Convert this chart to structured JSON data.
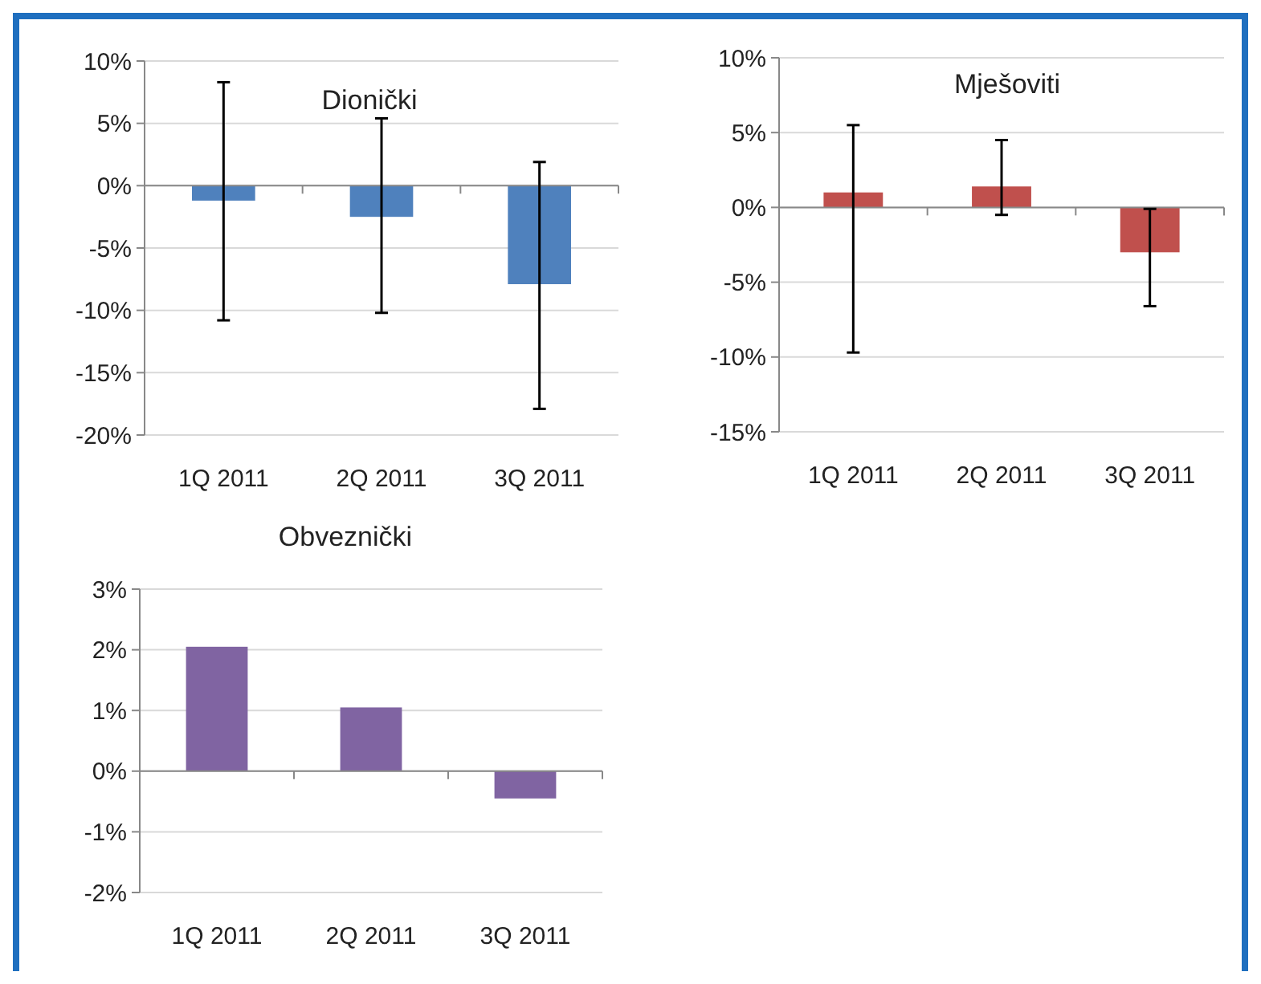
{
  "chart_data": [
    {
      "type": "bar",
      "title": "Dionički",
      "categories": [
        "1Q 2011",
        "2Q 2011",
        "3Q 2011"
      ],
      "values": [
        -1.2,
        -2.5,
        -7.9
      ],
      "color": "#4f81bd",
      "errors": [
        [
          -10.8,
          8.3
        ],
        [
          -10.2,
          5.4
        ],
        [
          -17.9,
          1.9
        ]
      ],
      "ylim": [
        -20,
        10
      ],
      "yticks": [
        {
          "value": -20,
          "label": "-20%"
        },
        {
          "value": -15,
          "label": "-15%"
        },
        {
          "value": -10,
          "label": "-10%"
        },
        {
          "value": -5,
          "label": "-5%"
        },
        {
          "value": 0,
          "label": "0%"
        },
        {
          "value": 5,
          "label": "5%"
        },
        {
          "value": 10,
          "label": "10%"
        }
      ],
      "grid": "y"
    },
    {
      "type": "bar",
      "title": "Mješoviti",
      "categories": [
        "1Q 2011",
        "2Q 2011",
        "3Q 2011"
      ],
      "values": [
        1.0,
        1.4,
        -3.0
      ],
      "color": "#c0504d",
      "errors": [
        [
          -9.7,
          5.5
        ],
        [
          -0.5,
          4.5
        ],
        [
          -6.6,
          -0.1
        ]
      ],
      "ylim": [
        -15,
        10
      ],
      "yticks": [
        {
          "value": -15,
          "label": "-15%"
        },
        {
          "value": -10,
          "label": "-10%"
        },
        {
          "value": -5,
          "label": "-5%"
        },
        {
          "value": 0,
          "label": "0%"
        },
        {
          "value": 5,
          "label": "5%"
        },
        {
          "value": 10,
          "label": "10%"
        }
      ],
      "grid": "y"
    },
    {
      "type": "bar",
      "title": "Obveznički",
      "categories": [
        "1Q 2011",
        "2Q 2011",
        "3Q 2011"
      ],
      "values": [
        2.05,
        1.05,
        -0.45
      ],
      "color": "#8064a2",
      "ylim": [
        -2,
        3
      ],
      "yticks": [
        {
          "value": -2,
          "label": "-2%"
        },
        {
          "value": -1,
          "label": "-1%"
        },
        {
          "value": 0,
          "label": "0%"
        },
        {
          "value": 1,
          "label": "1%"
        },
        {
          "value": 2,
          "label": "2%"
        },
        {
          "value": 3,
          "label": "3%"
        }
      ],
      "grid": "y"
    }
  ]
}
